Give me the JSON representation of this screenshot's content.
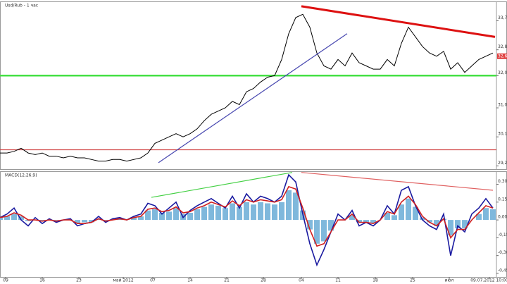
{
  "chart_data": [
    {
      "type": "line",
      "title": "Usd/Rub - 1 час",
      "xlim": [
        0,
        70.5
      ],
      "ylim": [
        29.1,
        34.3
      ],
      "yticks": [
        {
          "value": 29.2,
          "label": "29,2"
        },
        {
          "value": 30.1,
          "label": "30,1"
        },
        {
          "value": 31.0,
          "label": "31,0"
        },
        {
          "value": 32.0,
          "label": "32,0"
        },
        {
          "value": 32.8,
          "label": "32,8"
        },
        {
          "value": 33.7,
          "label": "33,7"
        }
      ],
      "series": [
        {
          "color": "#000000",
          "values": [
            29.6,
            29.6,
            29.65,
            29.75,
            29.6,
            29.55,
            29.6,
            29.5,
            29.5,
            29.45,
            29.5,
            29.45,
            29.45,
            29.4,
            29.35,
            29.35,
            29.4,
            29.4,
            29.35,
            29.4,
            29.45,
            29.6,
            29.9,
            30.0,
            30.1,
            30.2,
            30.1,
            30.2,
            30.35,
            30.6,
            30.8,
            30.9,
            31.0,
            31.2,
            31.1,
            31.5,
            31.6,
            31.8,
            31.95,
            32.0,
            32.5,
            33.3,
            33.8,
            33.9,
            33.5,
            32.7,
            32.3,
            32.2,
            32.5,
            32.3,
            32.7,
            32.4,
            32.3,
            32.2,
            32.2,
            32.5,
            32.3,
            33.0,
            33.5,
            33.2,
            32.9,
            32.7,
            32.6,
            32.75,
            32.2,
            32.4,
            32.1,
            32.3,
            32.5,
            32.6,
            32.7
          ]
        }
      ],
      "hlines": [
        {
          "value": 32.0,
          "color": "#44e044"
        },
        {
          "value": 29.7,
          "color": "#d04040"
        }
      ],
      "lines": [
        {
          "x": [
            42.8,
            70.3
          ],
          "y": [
            34.15,
            33.2
          ],
          "color": "#dd1111"
        },
        {
          "x": [
            22.5,
            49.3
          ],
          "y": [
            29.3,
            33.3
          ],
          "color": "#4848b0"
        }
      ],
      "marker": {
        "value": 32.6,
        "label": "32,6"
      }
    },
    {
      "type": "line",
      "title": "MACD(12,26,9)",
      "xlim": [
        0,
        70.5
      ],
      "ylim": [
        -0.48,
        0.41
      ],
      "yticks": [
        {
          "value": 0.3,
          "label": "0,30"
        },
        {
          "value": 0.15,
          "label": "0,15"
        },
        {
          "value": 0,
          "label": "0,00"
        },
        {
          "value": -0.15,
          "label": "-0,15"
        },
        {
          "value": -0.3,
          "label": "-0,30"
        },
        {
          "value": -0.45,
          "label": "-0,45"
        }
      ],
      "xticks": [
        {
          "value": 0.8,
          "label": "09"
        },
        {
          "value": 6,
          "label": "16"
        },
        {
          "value": 11.2,
          "label": "23"
        },
        {
          "value": 17.5,
          "label": "май 2012"
        },
        {
          "value": 21.7,
          "label": "07"
        },
        {
          "value": 27,
          "label": "14"
        },
        {
          "value": 32.2,
          "label": "21"
        },
        {
          "value": 37.4,
          "label": "28"
        },
        {
          "value": 42.8,
          "label": "04"
        },
        {
          "value": 48,
          "label": "11"
        },
        {
          "value": 53.3,
          "label": "18"
        },
        {
          "value": 58.6,
          "label": "25"
        },
        {
          "value": 63.8,
          "label": "июл"
        },
        {
          "value": 69.5,
          "label": "09.07.2012 10:00"
        }
      ],
      "series": [
        {
          "style": "bars",
          "color": "#7fb8dc",
          "values": [
            0.02,
            0.03,
            0.05,
            0.03,
            -0.01,
            0.0,
            -0.01,
            0.0,
            -0.01,
            0.0,
            0.0,
            -0.03,
            -0.02,
            -0.02,
            0.01,
            -0.01,
            0.0,
            0.01,
            0.0,
            0.02,
            0.03,
            0.08,
            0.09,
            0.06,
            0.07,
            0.1,
            0.05,
            0.06,
            0.09,
            0.11,
            0.13,
            0.12,
            0.1,
            0.14,
            0.11,
            0.15,
            0.13,
            0.15,
            0.14,
            0.13,
            0.15,
            0.25,
            0.23,
            0.08,
            -0.08,
            -0.2,
            -0.18,
            -0.09,
            0.0,
            0.0,
            0.04,
            -0.02,
            -0.02,
            -0.03,
            0.0,
            0.06,
            0.04,
            0.13,
            0.18,
            0.11,
            0.02,
            -0.02,
            -0.05,
            0.01,
            -0.13,
            -0.07,
            -0.07,
            0.0,
            0.05,
            0.1,
            0.09
          ]
        },
        {
          "color": "#1a1aa0",
          "values": [
            0.02,
            0.05,
            0.1,
            0.0,
            -0.05,
            0.02,
            -0.03,
            0.01,
            -0.02,
            0.0,
            0.01,
            -0.05,
            -0.03,
            -0.02,
            0.03,
            -0.02,
            0.01,
            0.02,
            0.0,
            0.03,
            0.05,
            0.14,
            0.12,
            0.05,
            0.1,
            0.15,
            0.02,
            0.08,
            0.12,
            0.15,
            0.18,
            0.14,
            0.1,
            0.2,
            0.1,
            0.22,
            0.15,
            0.2,
            0.18,
            0.15,
            0.2,
            0.38,
            0.32,
            0.05,
            -0.2,
            -0.38,
            -0.25,
            -0.1,
            0.05,
            0.0,
            0.08,
            -0.05,
            -0.02,
            -0.05,
            0.0,
            0.12,
            0.05,
            0.25,
            0.28,
            0.12,
            0.0,
            -0.05,
            -0.08,
            0.05,
            -0.3,
            -0.05,
            -0.1,
            0.05,
            0.1,
            0.18,
            0.1
          ]
        },
        {
          "color": "#d02020",
          "values": [
            0.02,
            0.03,
            0.06,
            0.04,
            0.0,
            0.0,
            -0.01,
            0.0,
            -0.01,
            0.0,
            0.0,
            -0.03,
            -0.03,
            -0.02,
            0.01,
            -0.01,
            0.0,
            0.01,
            0.0,
            0.02,
            0.03,
            0.09,
            0.1,
            0.07,
            0.08,
            0.11,
            0.06,
            0.07,
            0.1,
            0.12,
            0.15,
            0.13,
            0.11,
            0.16,
            0.12,
            0.17,
            0.15,
            0.17,
            0.16,
            0.15,
            0.17,
            0.28,
            0.26,
            0.1,
            -0.08,
            -0.22,
            -0.2,
            -0.1,
            0.0,
            0.0,
            0.05,
            -0.02,
            -0.02,
            -0.03,
            0.0,
            0.07,
            0.05,
            0.15,
            0.2,
            0.13,
            0.03,
            -0.02,
            -0.05,
            0.01,
            -0.15,
            -0.08,
            -0.08,
            0.0,
            0.06,
            0.12,
            0.1
          ]
        }
      ],
      "lines": [
        {
          "x": [
            21.5,
            41.5
          ],
          "y": [
            0.19,
            0.4
          ],
          "color": "#44d044"
        },
        {
          "x": [
            42.8,
            70
          ],
          "y": [
            0.4,
            0.25
          ],
          "color": "#e06060"
        }
      ]
    }
  ]
}
